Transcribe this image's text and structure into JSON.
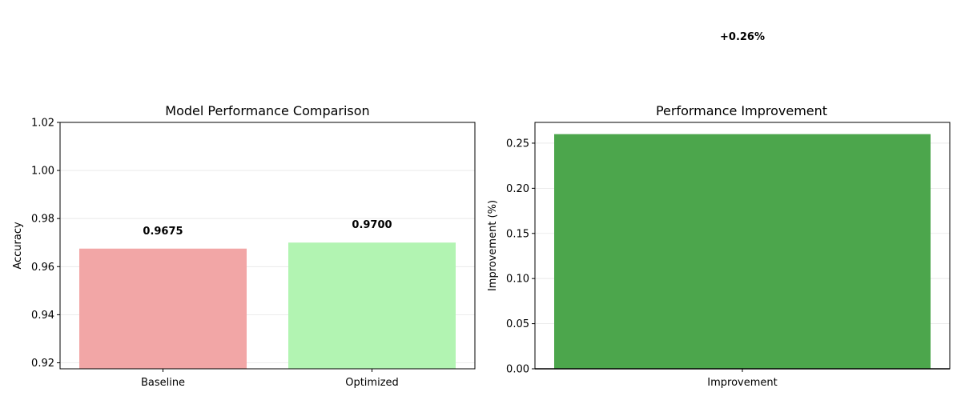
{
  "chart_data": [
    {
      "type": "bar",
      "title": "Model Performance Comparison",
      "xlabel": "",
      "ylabel": "Accuracy",
      "categories": [
        "Baseline",
        "Optimized"
      ],
      "values": [
        0.9675,
        0.97
      ],
      "data_labels": [
        "0.9675",
        "0.9700"
      ],
      "colors": [
        "#f2a6a6",
        "#b2f4b2"
      ],
      "ylim": [
        0.9175,
        1.02
      ],
      "yticks": [
        0.92,
        0.94,
        0.96,
        0.98,
        1.0,
        1.02
      ],
      "ytick_labels": [
        "0.92",
        "0.94",
        "0.96",
        "0.98",
        "1.00",
        "1.02"
      ],
      "grid": true
    },
    {
      "type": "bar",
      "title": "Performance Improvement",
      "xlabel": "",
      "ylabel": "Improvement (%)",
      "categories": [
        "Improvement"
      ],
      "values": [
        0.26
      ],
      "data_labels": [
        "+0.26%"
      ],
      "colors": [
        "#4ca64c"
      ],
      "ylim": [
        0,
        0.273
      ],
      "yticks": [
        0.0,
        0.05,
        0.1,
        0.15,
        0.2,
        0.25
      ],
      "ytick_labels": [
        "0.00",
        "0.05",
        "0.10",
        "0.15",
        "0.20",
        "0.25"
      ],
      "grid": true,
      "baseline_at_zero": true
    }
  ]
}
